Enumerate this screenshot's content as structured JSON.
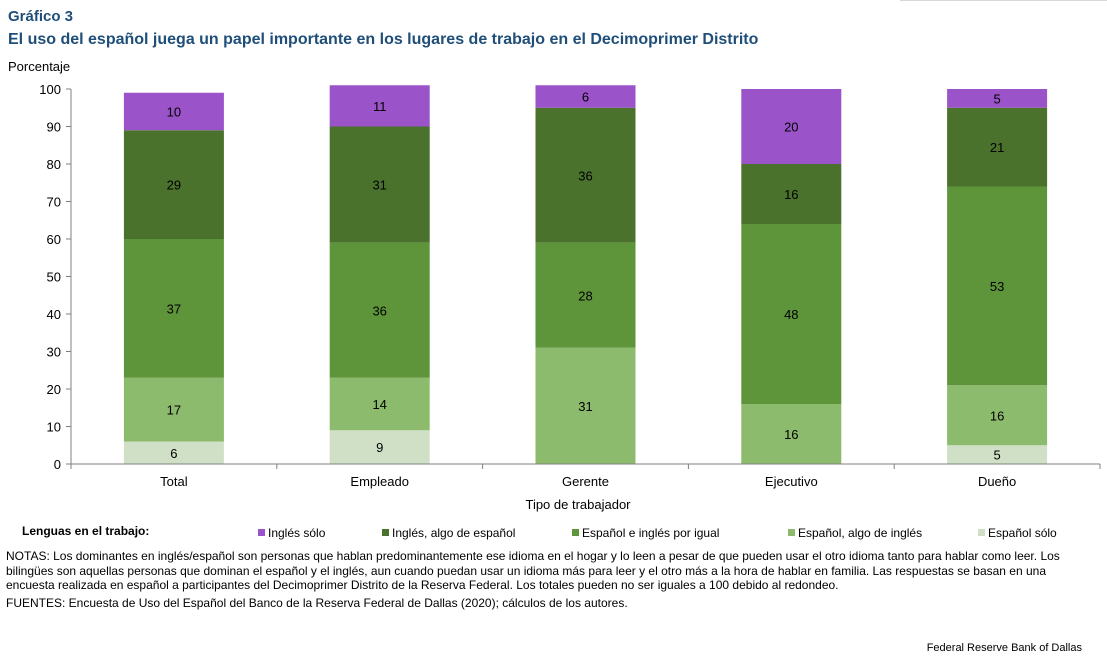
{
  "header": {
    "label": "Gráfico 3",
    "title": "El uso del español juega un papel importante en los lugares de trabajo en el Decimoprimer Distrito"
  },
  "chart_data": {
    "type": "bar",
    "stacked": true,
    "title": "El uso del español juega un papel importante en los lugares de trabajo en el Decimoprimer Distrito",
    "ylabel": "Porcentaje",
    "xlabel": "Tipo de trabajador",
    "ylim": [
      0,
      100
    ],
    "yticks": [
      0,
      10,
      20,
      30,
      40,
      50,
      60,
      70,
      80,
      90,
      100
    ],
    "categories": [
      "Total",
      "Empleado",
      "Gerente",
      "Ejecutivo",
      "Dueño"
    ],
    "series": [
      {
        "name": "Español sólo",
        "color": "#cfe0c6",
        "values": [
          6,
          9,
          0,
          0,
          5
        ]
      },
      {
        "name": "Español, algo de inglés",
        "color": "#8dbb6d",
        "values": [
          17,
          14,
          31,
          16,
          16
        ]
      },
      {
        "name": "Español e inglés por igual",
        "color": "#5e953b",
        "values": [
          37,
          36,
          28,
          48,
          53
        ]
      },
      {
        "name": "Inglés, algo de español",
        "color": "#4a722d",
        "values": [
          29,
          31,
          36,
          16,
          21
        ]
      },
      {
        "name": "Inglés sólo",
        "color": "#9a53c9",
        "values": [
          10,
          11,
          6,
          20,
          5
        ]
      }
    ],
    "legend_order": [
      "Inglés sólo",
      "Inglés, algo de español",
      "Español e inglés por igual",
      "Español, algo de inglés",
      "Español sólo"
    ],
    "legend_title": "Lenguas en el trabajo:"
  },
  "notes": "NOTAS: Los dominantes en inglés/español son personas que hablan predominantemente ese idioma en el hogar y lo leen a pesar de que pueden usar el otro idioma tanto para hablar como leer. Los bilingües son aquellas personas que dominan el español y el inglés, aun cuando puedan usar un idioma más para leer y el otro más a la hora de hablar en familia. Las respuestas se basan en una encuesta realizada en español a participantes del Decimoprimer Distrito de la Reserva Federal. Los totales pueden no ser iguales a 100 debido al redondeo.",
  "sources": "FUENTES: Encuesta de Uso del Español del Banco de la Reserva Federal de Dallas (2020); cálculos de los autores.",
  "credit": "Federal Reserve Bank of Dallas"
}
